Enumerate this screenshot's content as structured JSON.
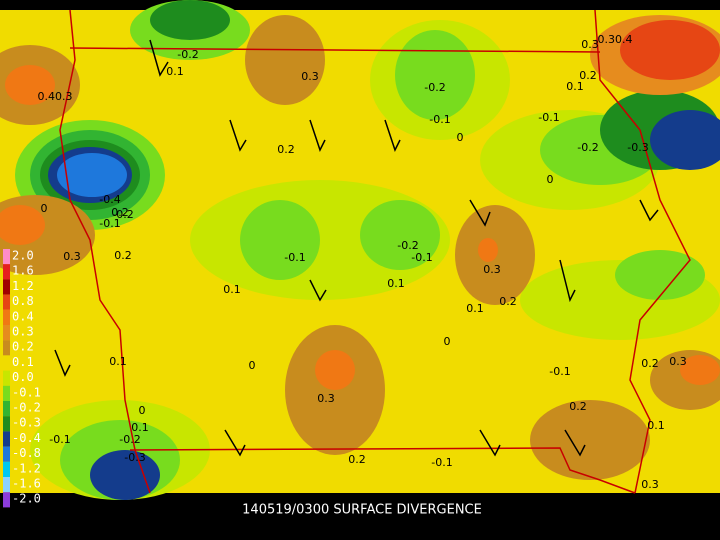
{
  "title": "140519/0300 SURFACE DIVERGENCE",
  "legend": [
    {
      "label": "2.0",
      "color": "#ff8cc8"
    },
    {
      "label": "1.6",
      "color": "#e61e1e"
    },
    {
      "label": "1.2",
      "color": "#a00000"
    },
    {
      "label": "0.8",
      "color": "#e64614"
    },
    {
      "label": "0.4",
      "color": "#f07814"
    },
    {
      "label": "0.3",
      "color": "#e68c1e"
    },
    {
      "label": "0.2",
      "color": "#c88c1e"
    },
    {
      "label": "0.1",
      "color": "#f0dc00"
    },
    {
      "label": "0.0",
      "color": "#c8e600"
    },
    {
      "label": "-0.1",
      "color": "#78dc1e"
    },
    {
      "label": "-0.2",
      "color": "#32b432"
    },
    {
      "label": "-0.3",
      "color": "#1e8c1e"
    },
    {
      "label": "-0.4",
      "color": "#143c8c"
    },
    {
      "label": "-0.8",
      "color": "#1e78dc"
    },
    {
      "label": "-1.2",
      "color": "#00c8f0"
    },
    {
      "label": "-1.6",
      "color": "#8cd2ff"
    },
    {
      "label": "-2.0",
      "color": "#8c3cdc"
    }
  ],
  "contour_labels": [
    "-0.2",
    "0.1",
    "0.3",
    "-0.2",
    "-0.1",
    "0",
    "0.30.4",
    "0.2",
    "0.1",
    "0.40.3",
    "0.2",
    "0.2",
    "-0.1",
    "-0.2",
    "-0.3",
    "0",
    "-0.4",
    "-0.2",
    "-0.1",
    "0",
    "0.3",
    "0.2",
    "-0.1",
    "-0.2",
    "-0.1",
    "0.3",
    "0.2",
    "0.1",
    "0.1",
    "0.1",
    "0",
    "0.1",
    "0",
    "-0.1",
    "0.2",
    "0.3",
    "0.1",
    "0.2",
    "0.1",
    "0.3",
    "0.3",
    "0",
    "-0.1",
    "-0.2",
    "-0.3",
    "0.2",
    "-0.1",
    "0.3"
  ]
}
